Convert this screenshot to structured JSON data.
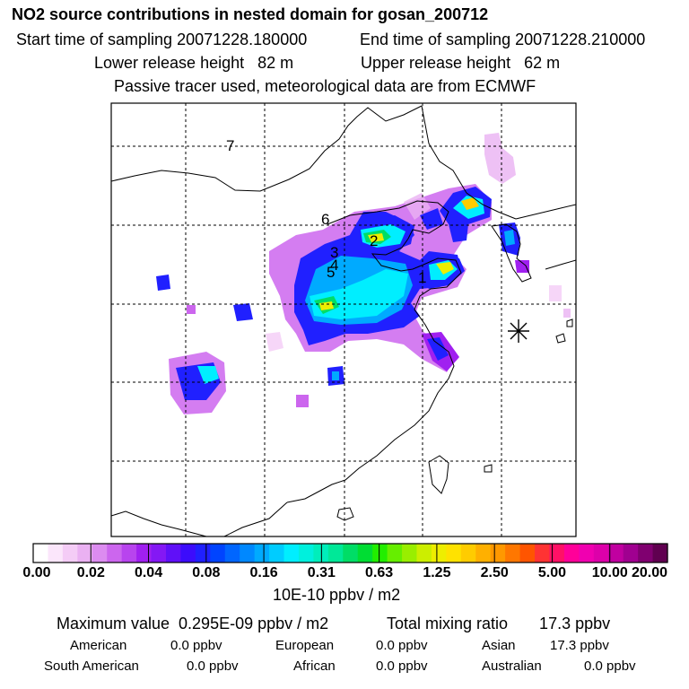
{
  "title": "NO2 source contributions in nested domain for gosan_200712",
  "sampling": {
    "start": "Start time of sampling 20071228.180000",
    "end": "End time of sampling 20071228.210000"
  },
  "release": {
    "lower": "Lower release height   82 m",
    "upper": "Upper release height   62 m"
  },
  "tracer_note": "Passive tracer used, meteorological data are from ECMWF",
  "map": {
    "point_labels": [
      "1",
      "2",
      "3",
      "4",
      "5",
      "6",
      "7"
    ],
    "receptor_marker": "gosan-receptor-asterisk"
  },
  "colorbar": {
    "tick_labels": [
      "0.00",
      "0.02",
      "0.04",
      "0.08",
      "0.16",
      "0.31",
      "0.63",
      "1.25",
      "2.50",
      "5.00",
      "10.00",
      "20.00"
    ],
    "units": "10E-10 ppbv / m2",
    "colors": [
      "#ffffff",
      "#fbe6fb",
      "#f4ccf6",
      "#eab1f2",
      "#dc8cf0",
      "#cc66ee",
      "#b844ee",
      "#a020f0",
      "#8418f4",
      "#6010f8",
      "#3c0cfc",
      "#2020ff",
      "#0044ff",
      "#0066ff",
      "#0088ff",
      "#00aaff",
      "#00ccff",
      "#00eeff",
      "#00f0dd",
      "#00eebb",
      "#00e898",
      "#00dd66",
      "#00dd33",
      "#22ee00",
      "#66ee00",
      "#99ee00",
      "#ccee00",
      "#eeee00",
      "#ffe200",
      "#ffcc00",
      "#ffb000",
      "#ff9800",
      "#ff7700",
      "#ff5500",
      "#ff3333",
      "#ff1166",
      "#ff0099",
      "#f000b0",
      "#dd00aa",
      "#c000a0",
      "#a00090",
      "#800070",
      "#600050"
    ]
  },
  "summary": {
    "max_value": "Maximum value  0.295E-09 ppbv / m2",
    "total_mixing": "Total mixing ratio       17.3 ppbv",
    "regions": [
      {
        "name": "American",
        "value": "0.0 ppbv"
      },
      {
        "name": "European",
        "value": "0.0 ppbv"
      },
      {
        "name": "Asian",
        "value": "17.3 ppbv"
      },
      {
        "name": "South American",
        "value": "0.0 ppbv"
      },
      {
        "name": "African",
        "value": "0.0 ppbv"
      },
      {
        "name": "Australian",
        "value": "0.0 ppbv"
      }
    ]
  }
}
